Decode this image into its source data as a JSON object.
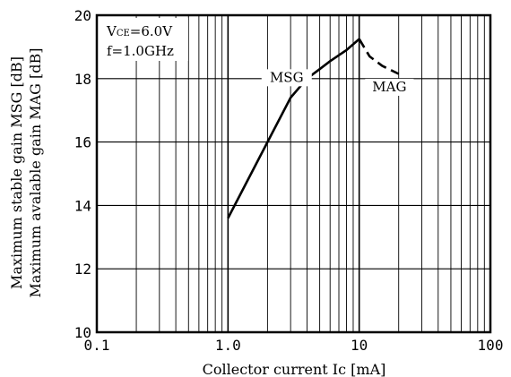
{
  "chart_data": {
    "type": "line",
    "xlabel": "Collector current Ic [mA]",
    "ylabel_lines": [
      "Maximum stable gain MSG [dB]",
      "Maximum avalable gain MAG [dB]"
    ],
    "x_scale": "log",
    "xlim": [
      0.1,
      100
    ],
    "ylim": [
      10,
      20
    ],
    "x_ticks": [
      {
        "value": 0.1,
        "label": "0.1"
      },
      {
        "value": 1,
        "label": "1.0"
      },
      {
        "value": 10,
        "label": "10"
      },
      {
        "value": 100,
        "label": "100"
      }
    ],
    "y_ticks": [
      {
        "value": 10,
        "label": "10"
      },
      {
        "value": 12,
        "label": "12"
      },
      {
        "value": 14,
        "label": "14"
      },
      {
        "value": 16,
        "label": "16"
      },
      {
        "value": 18,
        "label": "18"
      },
      {
        "value": 20,
        "label": "20"
      }
    ],
    "grid": true,
    "conditions": {
      "line1_pre": "V",
      "line1_sub": "CE",
      "line1_post": "=6.0V",
      "line2": "f=1.0GHz"
    },
    "series": [
      {
        "name": "MSG",
        "style": "solid",
        "x": [
          1.0,
          2.0,
          3.0,
          4.0,
          5.0,
          6.0,
          8.0,
          10.0
        ],
        "y": [
          13.6,
          16.0,
          17.4,
          18.0,
          18.3,
          18.55,
          18.9,
          19.25
        ]
      },
      {
        "name": "MAG",
        "style": "dashed",
        "x": [
          10.0,
          12.0,
          15.0,
          20.0
        ],
        "y": [
          19.25,
          18.7,
          18.4,
          18.15
        ]
      }
    ]
  }
}
